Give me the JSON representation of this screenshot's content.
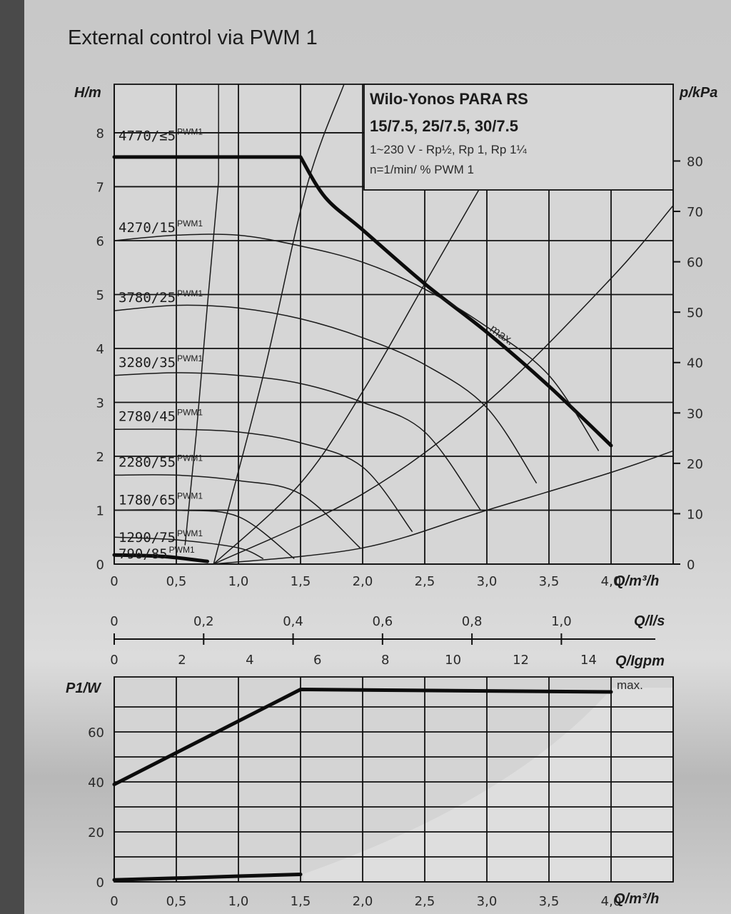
{
  "title": "External control via PWM 1",
  "info": {
    "model": "Wilo-Yonos PARA RS",
    "variants": "15/7.5, 25/7.5, 30/7.5",
    "electrical": "1~230 V - Rp½, Rp 1, Rp 1¼",
    "speed_note": "n=1/min/ % PWM 1"
  },
  "chart_data": [
    {
      "type": "line",
      "id": "head",
      "xlabel": "Q/m³/h",
      "ylabel": "H/m",
      "ylabel_right": "p/kPa",
      "xlim": [
        0,
        4.5
      ],
      "ylim": [
        0,
        8.9
      ],
      "grid": true,
      "x_ticks": [
        0,
        0.5,
        1.0,
        1.5,
        2.0,
        2.5,
        3.0,
        3.5,
        4.0
      ],
      "x_tick_labels": [
        "0",
        "0,5",
        "1,0",
        "1,5",
        "2,0",
        "2,5",
        "3,0",
        "3,5",
        "4,0"
      ],
      "y_ticks": [
        0,
        1,
        2,
        3,
        4,
        5,
        6,
        7,
        8
      ],
      "y_tick_labels": [
        "0",
        "1",
        "2",
        "3",
        "4",
        "5",
        "6",
        "7",
        "8"
      ],
      "y2_ticks": [
        0,
        10,
        20,
        30,
        40,
        50,
        60,
        70,
        80
      ],
      "y2_tick_labels": [
        "0",
        "10",
        "20",
        "30",
        "40",
        "50",
        "60",
        "70",
        "80"
      ],
      "curve_labels": [
        {
          "rpm": "4770/≤5",
          "sup": "PWM1",
          "h": 7.95
        },
        {
          "rpm": "4270/15",
          "sup": "PWM1",
          "h": 6.25
        },
        {
          "rpm": "3780/25",
          "sup": "PWM1",
          "h": 4.95
        },
        {
          "rpm": "3280/35",
          "sup": "PWM1",
          "h": 3.75
        },
        {
          "rpm": "2780/45",
          "sup": "PWM1",
          "h": 2.75
        },
        {
          "rpm": "2280/55",
          "sup": "PWM1",
          "h": 1.9
        },
        {
          "rpm": "1780/65",
          "sup": "PWM1",
          "h": 1.2
        },
        {
          "rpm": "1290/75",
          "sup": "PWM1",
          "h": 0.5
        },
        {
          "rpm": "790/85",
          "sup": "PWM1",
          "h": 0.2
        }
      ],
      "max_label": "max.",
      "series": [
        {
          "weight": "bold",
          "points": [
            [
              0,
              7.55
            ],
            [
              1.5,
              7.55
            ],
            [
              1.7,
              6.8
            ],
            [
              2.0,
              6.2
            ],
            [
              2.5,
              5.2
            ],
            [
              3.0,
              4.3
            ],
            [
              3.5,
              3.3
            ],
            [
              4.0,
              2.2
            ]
          ]
        },
        {
          "points": [
            [
              0,
              6.0
            ],
            [
              0.5,
              6.1
            ],
            [
              1.0,
              6.1
            ],
            [
              1.5,
              5.9
            ],
            [
              2.0,
              5.6
            ],
            [
              2.5,
              5.1
            ],
            [
              3.0,
              4.4
            ],
            [
              3.5,
              3.5
            ],
            [
              3.9,
              2.1
            ]
          ]
        },
        {
          "points": [
            [
              0,
              4.7
            ],
            [
              0.5,
              4.8
            ],
            [
              1.0,
              4.75
            ],
            [
              1.5,
              4.55
            ],
            [
              2.0,
              4.2
            ],
            [
              2.5,
              3.7
            ],
            [
              3.0,
              2.9
            ],
            [
              3.4,
              1.5
            ]
          ]
        },
        {
          "points": [
            [
              0,
              3.5
            ],
            [
              0.5,
              3.55
            ],
            [
              1.0,
              3.5
            ],
            [
              1.5,
              3.35
            ],
            [
              2.0,
              3.0
            ],
            [
              2.5,
              2.45
            ],
            [
              2.95,
              1.0
            ]
          ]
        },
        {
          "points": [
            [
              0,
              2.5
            ],
            [
              0.5,
              2.5
            ],
            [
              1.0,
              2.45
            ],
            [
              1.5,
              2.25
            ],
            [
              2.0,
              1.8
            ],
            [
              2.4,
              0.6
            ]
          ]
        },
        {
          "points": [
            [
              0,
              1.65
            ],
            [
              0.5,
              1.65
            ],
            [
              1.0,
              1.55
            ],
            [
              1.5,
              1.3
            ],
            [
              1.98,
              0.3
            ]
          ]
        },
        {
          "points": [
            [
              0,
              1.0
            ],
            [
              0.5,
              1.0
            ],
            [
              1.0,
              0.88
            ],
            [
              1.45,
              0.1
            ]
          ]
        },
        {
          "points": [
            [
              0,
              0.5
            ],
            [
              0.5,
              0.45
            ],
            [
              1.0,
              0.3
            ],
            [
              1.2,
              0.1
            ]
          ]
        },
        {
          "weight": "bold",
          "points": [
            [
              0,
              0.17
            ],
            [
              0.4,
              0.14
            ],
            [
              0.75,
              0.05
            ]
          ]
        }
      ],
      "system_lines": [
        {
          "points": [
            [
              0.8,
              0
            ],
            [
              1.2,
              3.5
            ],
            [
              1.55,
              7.0
            ],
            [
              1.85,
              8.9
            ]
          ]
        },
        {
          "points": [
            [
              0.8,
              0
            ],
            [
              1.5,
              1.5
            ],
            [
              2.0,
              3.2
            ],
            [
              2.5,
              5.2
            ],
            [
              2.95,
              7.0
            ]
          ]
        },
        {
          "points": [
            [
              0.8,
              0
            ],
            [
              2.0,
              1.3
            ],
            [
              3.0,
              3.0
            ],
            [
              4.0,
              5.3
            ],
            [
              4.5,
              6.65
            ]
          ]
        },
        {
          "points": [
            [
              0.8,
              0
            ],
            [
              2.0,
              0.3
            ],
            [
              3.0,
              1.0
            ],
            [
              4.0,
              1.7
            ],
            [
              4.5,
              2.1
            ]
          ]
        }
      ],
      "iso_lines": [
        {
          "points": [
            [
              0.57,
              0.35
            ],
            [
              0.66,
              2.4
            ],
            [
              0.75,
              4.8
            ],
            [
              0.84,
              7.1
            ],
            [
              0.84,
              8.9
            ]
          ]
        }
      ]
    },
    {
      "type": "axis",
      "id": "q-ls",
      "xlabel": "Q/l/s",
      "xlim": [
        0,
        1.25
      ],
      "x_ticks": [
        0,
        0.2,
        0.4,
        0.6,
        0.8,
        1.0
      ],
      "x_tick_labels": [
        "0",
        "0,2",
        "0,4",
        "0,6",
        "0,8",
        "1,0"
      ]
    },
    {
      "type": "axis",
      "id": "q-igpm",
      "xlabel": "Q/Igpm",
      "xlim": [
        0,
        16.5
      ],
      "x_ticks": [
        0,
        2,
        4,
        6,
        8,
        10,
        12,
        14
      ],
      "x_tick_labels": [
        "0",
        "2",
        "4",
        "6",
        "8",
        "10",
        "12",
        "14"
      ]
    },
    {
      "type": "line",
      "id": "power",
      "xlabel": "Q/m³/h",
      "ylabel": "P1/W",
      "xlim": [
        0,
        4.5
      ],
      "ylim": [
        0,
        80
      ],
      "grid": true,
      "x_ticks": [
        0,
        0.5,
        1.0,
        1.5,
        2.0,
        2.5,
        3.0,
        3.5,
        4.0
      ],
      "x_tick_labels": [
        "0",
        "0,5",
        "1,0",
        "1,5",
        "2,0",
        "2,5",
        "3,0",
        "3,5",
        "4,0"
      ],
      "y_ticks": [
        0,
        20,
        40,
        60
      ],
      "y_tick_labels": [
        "0",
        "20",
        "40",
        "60"
      ],
      "max_label": "max.",
      "series": [
        {
          "weight": "bold",
          "points": [
            [
              0,
              39
            ],
            [
              1.5,
              77
            ],
            [
              4.0,
              76
            ]
          ]
        },
        {
          "weight": "bold",
          "points": [
            [
              0,
              0.8
            ],
            [
              0.5,
              1.5
            ],
            [
              1.0,
              2.3
            ],
            [
              1.5,
              3.0
            ]
          ]
        }
      ]
    }
  ],
  "colors": {
    "background": "#c9c9c9",
    "plot": "#d7d7d7",
    "lines": "#111111",
    "left_bar": "#4a4a4a"
  }
}
